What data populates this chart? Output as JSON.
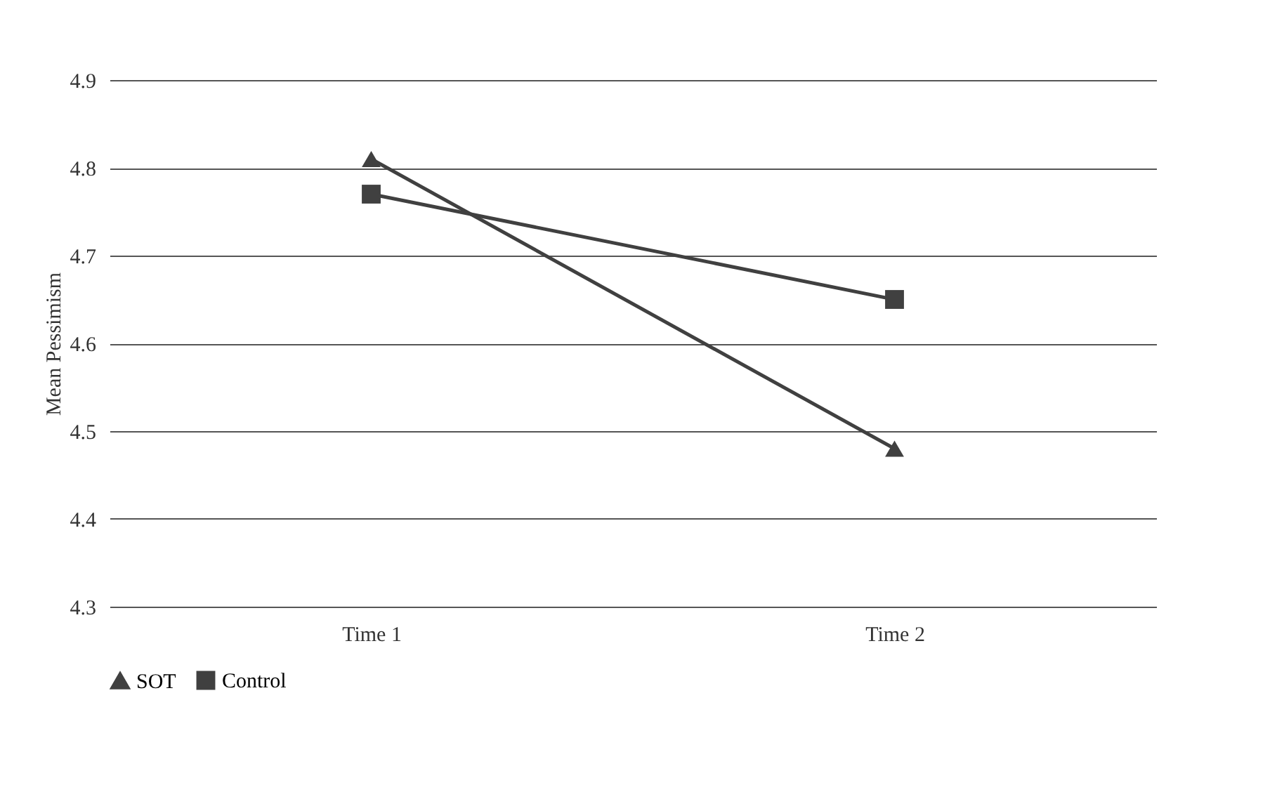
{
  "chart_data": {
    "type": "line",
    "ylabel": "Mean Pessimism",
    "categories": [
      "Time 1",
      "Time 2"
    ],
    "series": [
      {
        "name": "SOT",
        "color": "#404040",
        "marker": "triangle",
        "values": [
          4.81,
          4.48
        ]
      },
      {
        "name": "Control",
        "color": "#404040",
        "marker": "square",
        "values": [
          4.77,
          4.65
        ]
      }
    ],
    "ylim": [
      4.3,
      4.9
    ],
    "yticks": [
      4.3,
      4.4,
      4.5,
      4.6,
      4.7,
      4.8,
      4.9
    ],
    "grid": "y",
    "legend": "bottom"
  }
}
